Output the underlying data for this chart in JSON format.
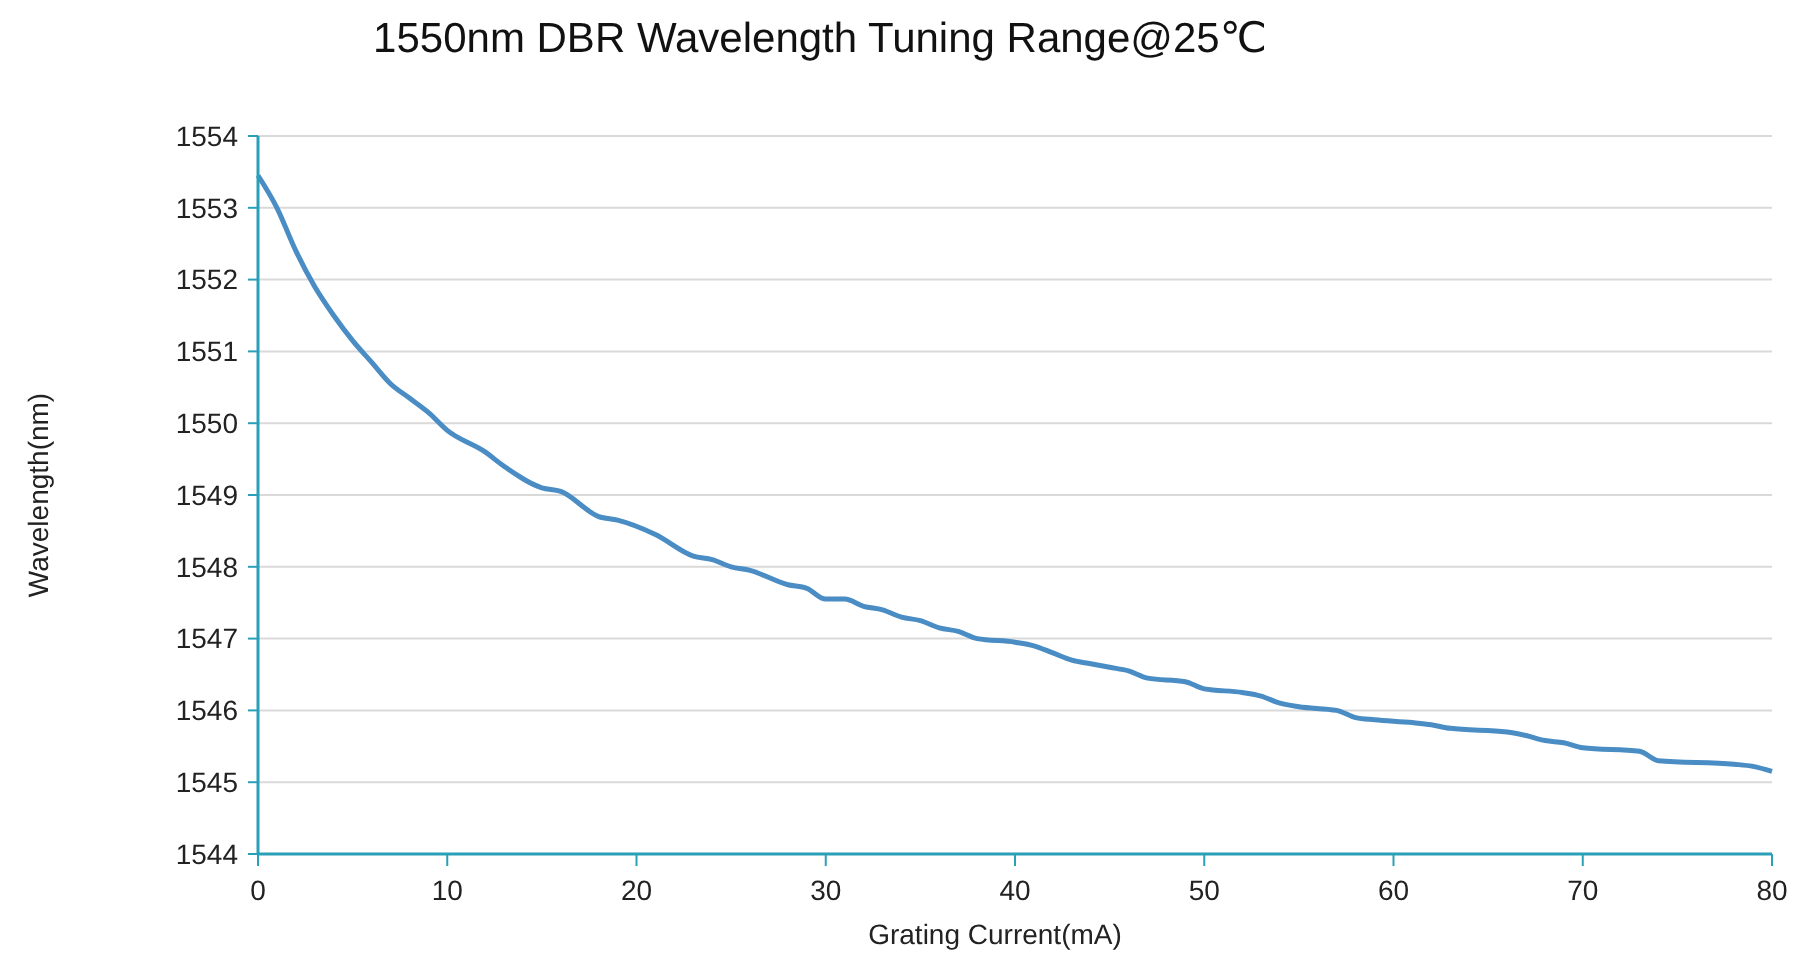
{
  "chart_data": {
    "type": "line",
    "title": "1550nm DBR Wavelength Tuning Range@25℃",
    "xlabel": "Grating Current(mA)",
    "ylabel": "Wavelength(nm)",
    "xlim": [
      0,
      80
    ],
    "xticks": [
      0,
      10,
      20,
      30,
      40,
      50,
      60,
      70,
      80
    ],
    "ylim": [
      1544,
      1554
    ],
    "yticks": [
      1544,
      1545,
      1546,
      1547,
      1548,
      1549,
      1550,
      1551,
      1552,
      1553,
      1554
    ],
    "grid": "y",
    "marker": "none",
    "line_style": "solid",
    "series": [
      {
        "color": "#4a8cc4",
        "x": [
          0,
          1,
          2,
          3,
          4,
          5,
          6,
          7,
          8,
          9,
          10,
          12,
          13,
          15,
          16,
          18,
          19,
          21,
          23,
          24,
          25,
          26,
          28,
          29,
          30,
          31,
          32,
          33,
          34,
          35,
          36,
          37,
          38,
          40,
          41,
          42,
          43,
          44,
          45,
          46,
          47,
          49,
          50,
          52,
          53,
          54,
          55,
          57,
          58,
          59,
          61,
          62,
          63,
          66,
          67,
          68,
          69,
          70,
          73,
          74,
          78,
          79,
          80
        ],
        "values": [
          1553.45,
          1553.0,
          1552.4,
          1551.9,
          1551.5,
          1551.15,
          1550.85,
          1550.55,
          1550.35,
          1550.15,
          1549.9,
          1549.6,
          1549.4,
          1549.1,
          1549.05,
          1548.7,
          1548.65,
          1548.45,
          1548.15,
          1548.1,
          1548.0,
          1547.95,
          1547.75,
          1547.7,
          1547.55,
          1547.55,
          1547.45,
          1547.4,
          1547.3,
          1547.25,
          1547.15,
          1547.1,
          1547.0,
          1546.95,
          1546.9,
          1546.8,
          1546.7,
          1546.65,
          1546.6,
          1546.55,
          1546.45,
          1546.4,
          1546.3,
          1546.25,
          1546.2,
          1546.1,
          1546.05,
          1546.0,
          1545.9,
          1545.87,
          1545.83,
          1545.8,
          1545.75,
          1545.7,
          1545.65,
          1545.58,
          1545.55,
          1545.48,
          1545.43,
          1545.3,
          1545.25,
          1545.22,
          1545.15
        ]
      }
    ]
  }
}
